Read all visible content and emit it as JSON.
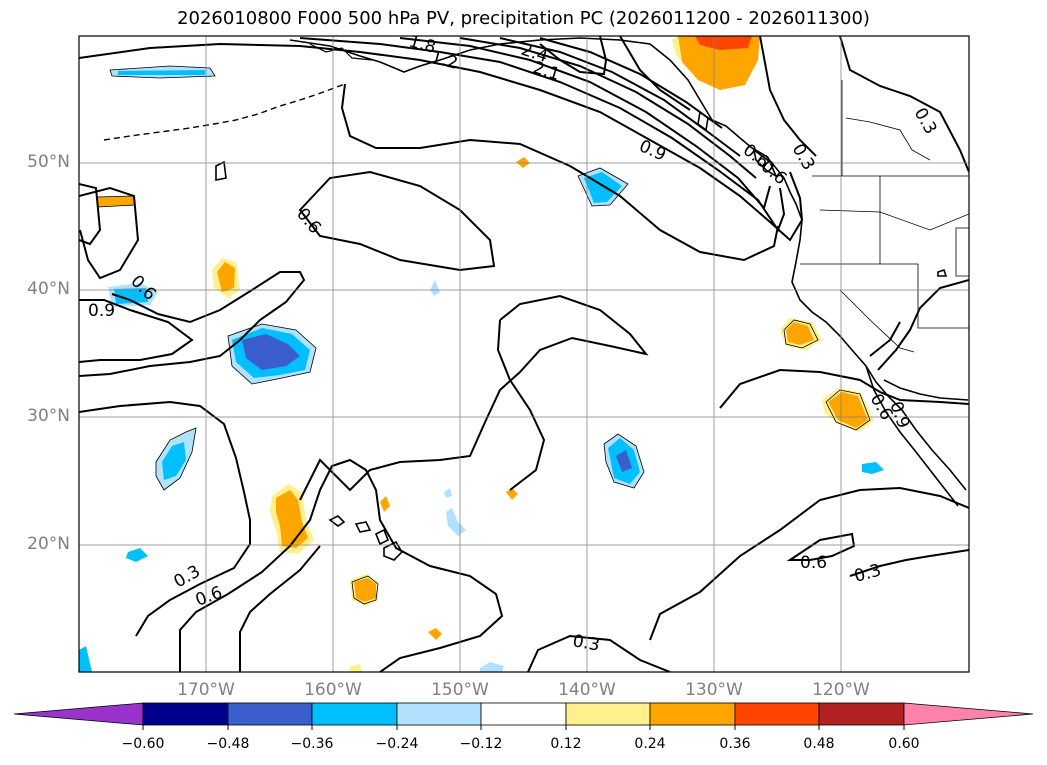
{
  "title": "2026010800 F000 500 hPa PV, precipitation PC (2026011200 - 2026011300)",
  "lat_labels": [
    "50°N",
    "40°N",
    "30°N",
    "20°N"
  ],
  "lon_labels": [
    "170°W",
    "160°W",
    "150°W",
    "140°W",
    "130°W",
    "120°W"
  ],
  "contour_labels": [
    "2.4",
    "2.1",
    "1.2",
    "1.8",
    "0.9",
    "0.6",
    "0.3",
    "0.6",
    "0.9",
    "0.6",
    "0.3",
    "0.6",
    "0.3",
    "0.6",
    "0.3",
    "0.3",
    "0.6",
    "0.9",
    "0.6"
  ],
  "colorbar": {
    "ticks": [
      "−0.60",
      "−0.48",
      "−0.36",
      "−0.24",
      "−0.12",
      "0.12",
      "0.24",
      "0.36",
      "0.48",
      "0.60"
    ],
    "colors": [
      "#9933cc",
      "#00008b",
      "#3a5fcd",
      "#00bfff",
      "#b0e2ff",
      "#ffffff",
      "#fff08c",
      "#ffa500",
      "#ff4500",
      "#b22222",
      "#ff82ab"
    ]
  },
  "map": {
    "extent": {
      "lon": [
        -180,
        -110
      ],
      "lat": [
        10,
        60
      ]
    },
    "gridlines": true
  }
}
